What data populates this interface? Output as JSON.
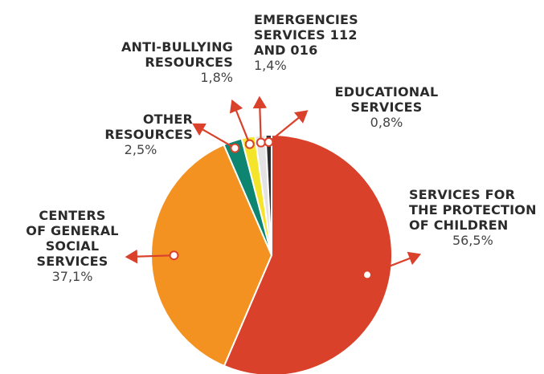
{
  "chart_data": {
    "type": "pie",
    "slices": [
      {
        "label": "SERVICES FOR\nTHE PROTECTION\nOF CHILDREN",
        "value": 56.5,
        "value_label": "56,5%",
        "color": "#D9412B"
      },
      {
        "label": "CENTERS\nOF GENERAL\nSOCIAL\nSERVICES",
        "value": 37.1,
        "value_label": "37,1%",
        "color": "#F39221"
      },
      {
        "label": "OTHER\nRESOURCES",
        "value": 2.5,
        "value_label": "2,5%",
        "color": "#0E8571"
      },
      {
        "label": "ANTI-BULLYING\nRESOURCES",
        "value": 1.8,
        "value_label": "1,8%",
        "color": "#F5E52A"
      },
      {
        "label": "EMERGENCIES\nSERVICES 112\nAND 016",
        "value": 1.4,
        "value_label": "1,4%",
        "color": "#E3E3E3"
      },
      {
        "label": "EDUCATIONAL\nSERVICES",
        "value": 0.8,
        "value_label": "0,8%",
        "color": "#2B2B2B"
      }
    ],
    "start_angle_deg": 0,
    "direction": "clockwise",
    "leader_color": "#D9412B"
  }
}
